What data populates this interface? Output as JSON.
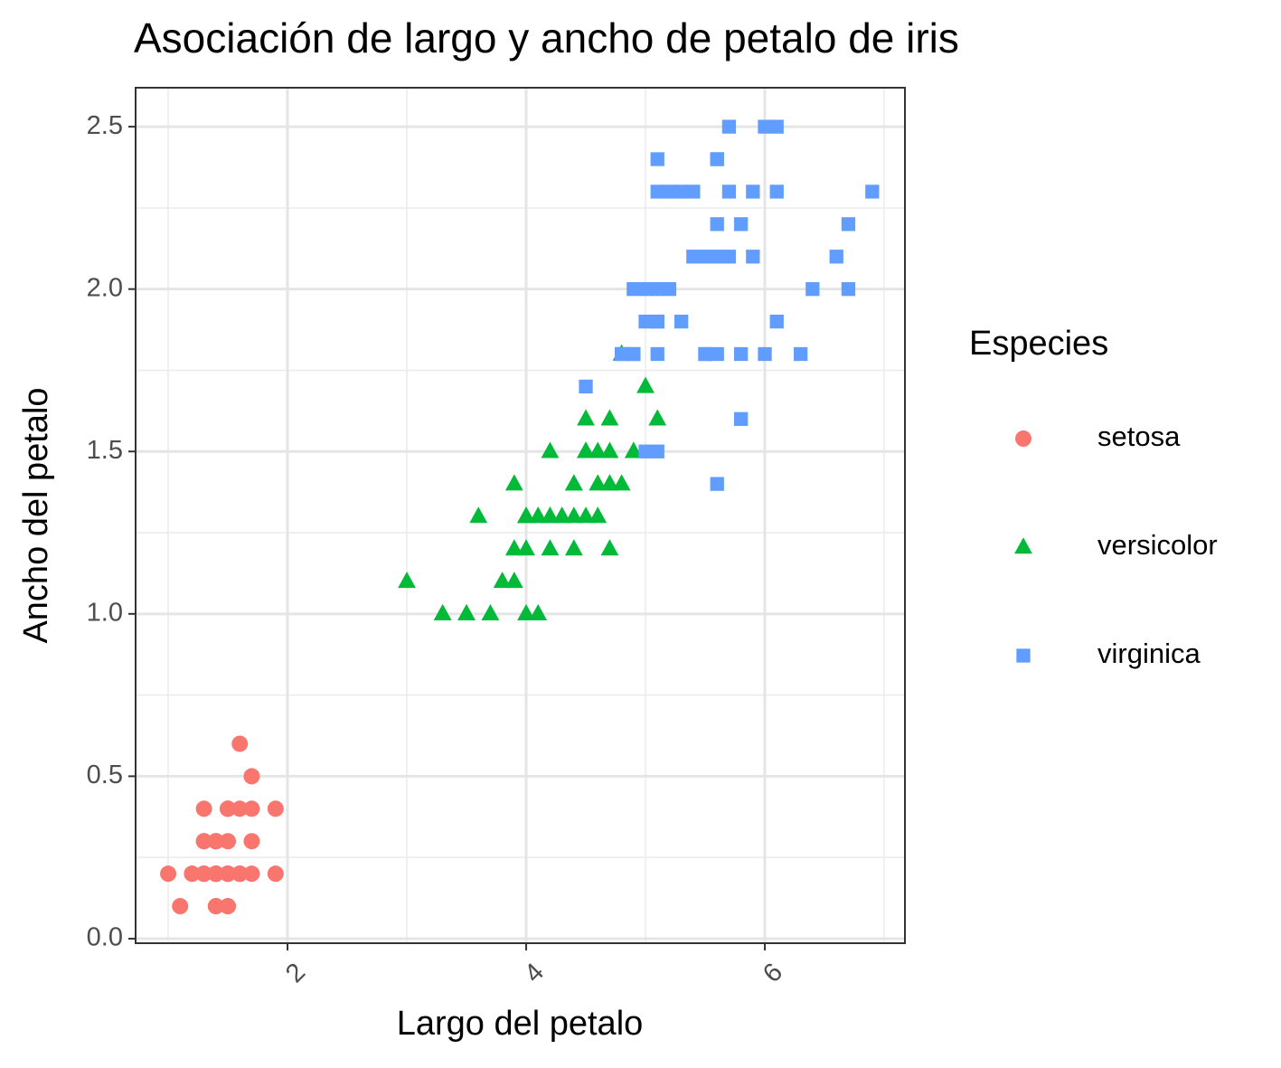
{
  "chart_data": {
    "type": "scatter",
    "title": "Asociación de largo y ancho de petalo de iris",
    "x_label": "Largo del petalo",
    "y_label": "Ancho del petalo",
    "legend_title": "Especies",
    "legend_position": "right",
    "grid": true,
    "xlim": [
      0.727,
      7.174
    ],
    "xticks": [
      2,
      4,
      6
    ],
    "ylim": [
      -0.014,
      2.62
    ],
    "yticks": [
      {
        "value": 0,
        "label": "0.0"
      },
      {
        "value": 0.5,
        "label": "0.5"
      },
      {
        "value": 1,
        "label": "1.0"
      },
      {
        "value": 1.5,
        "label": "1.5"
      },
      {
        "value": 2,
        "label": "2.0"
      },
      {
        "value": 2.5,
        "label": "2.5"
      }
    ],
    "series": [
      {
        "name": "setosa",
        "color": "#f8766d",
        "shape": "circle",
        "x": [
          1.4,
          1.4,
          1.3,
          1.5,
          1.4,
          1.7,
          1.4,
          1.5,
          1.4,
          1.5,
          1.5,
          1.6,
          1.4,
          1.1,
          1.2,
          1.5,
          1.3,
          1.4,
          1.7,
          1.5,
          1.7,
          1.5,
          1.0,
          1.7,
          1.9,
          1.6,
          1.6,
          1.5,
          1.4,
          1.6,
          1.6,
          1.5,
          1.5,
          1.4,
          1.5,
          1.2,
          1.3,
          1.4,
          1.3,
          1.5,
          1.3,
          1.3,
          1.3,
          1.6,
          1.9,
          1.4,
          1.6,
          1.4,
          1.5,
          1.4
        ],
        "values": [
          0.2,
          0.2,
          0.2,
          0.2,
          0.2,
          0.4,
          0.3,
          0.2,
          0.2,
          0.1,
          0.2,
          0.2,
          0.1,
          0.1,
          0.2,
          0.4,
          0.4,
          0.3,
          0.3,
          0.3,
          0.2,
          0.4,
          0.2,
          0.5,
          0.2,
          0.2,
          0.4,
          0.2,
          0.2,
          0.2,
          0.2,
          0.4,
          0.1,
          0.2,
          0.2,
          0.2,
          0.2,
          0.1,
          0.2,
          0.2,
          0.3,
          0.3,
          0.2,
          0.6,
          0.4,
          0.3,
          0.2,
          0.2,
          0.2,
          0.2
        ]
      },
      {
        "name": "versicolor",
        "color": "#00ba38",
        "shape": "triangle",
        "x": [
          4.7,
          4.5,
          4.9,
          4.0,
          4.6,
          4.5,
          4.7,
          3.3,
          4.6,
          3.9,
          3.5,
          4.2,
          4.0,
          4.7,
          3.6,
          4.4,
          4.5,
          4.1,
          4.5,
          3.9,
          4.8,
          4.0,
          4.9,
          4.7,
          4.3,
          4.4,
          4.8,
          5.0,
          4.5,
          3.5,
          3.8,
          3.7,
          3.9,
          5.1,
          4.5,
          4.5,
          4.7,
          4.4,
          4.1,
          4.0,
          4.4,
          4.6,
          4.0,
          3.3,
          4.2,
          4.2,
          4.2,
          4.3,
          3.0,
          4.1
        ],
        "values": [
          1.4,
          1.5,
          1.5,
          1.3,
          1.5,
          1.3,
          1.6,
          1.0,
          1.3,
          1.4,
          1.0,
          1.5,
          1.0,
          1.4,
          1.3,
          1.4,
          1.5,
          1.0,
          1.5,
          1.1,
          1.8,
          1.3,
          1.5,
          1.2,
          1.3,
          1.4,
          1.4,
          1.7,
          1.5,
          1.0,
          1.1,
          1.0,
          1.2,
          1.6,
          1.5,
          1.6,
          1.5,
          1.3,
          1.3,
          1.3,
          1.2,
          1.4,
          1.2,
          1.0,
          1.3,
          1.2,
          1.3,
          1.3,
          1.1,
          1.3
        ]
      },
      {
        "name": "virginica",
        "color": "#619cff",
        "shape": "square",
        "x": [
          6.0,
          5.1,
          5.9,
          5.6,
          5.8,
          6.6,
          4.5,
          6.3,
          5.8,
          6.1,
          5.1,
          5.3,
          5.5,
          5.0,
          5.1,
          5.3,
          5.5,
          6.7,
          6.9,
          5.0,
          5.7,
          4.9,
          6.7,
          4.9,
          5.7,
          6.0,
          4.8,
          4.9,
          5.6,
          5.8,
          6.1,
          6.4,
          5.6,
          5.1,
          5.6,
          6.1,
          5.6,
          5.5,
          4.8,
          5.4,
          5.6,
          5.1,
          5.1,
          5.9,
          5.7,
          5.2,
          5.0,
          5.2,
          5.4,
          5.1
        ],
        "values": [
          2.5,
          1.9,
          2.1,
          1.8,
          2.2,
          2.1,
          1.7,
          1.8,
          1.8,
          2.5,
          2.0,
          1.9,
          2.1,
          2.0,
          2.4,
          2.3,
          1.8,
          2.2,
          2.3,
          1.5,
          2.3,
          2.0,
          2.0,
          1.8,
          2.1,
          1.8,
          1.8,
          1.8,
          2.1,
          1.6,
          1.9,
          2.0,
          2.2,
          1.5,
          1.4,
          2.3,
          2.4,
          1.8,
          1.8,
          2.1,
          2.4,
          2.3,
          1.9,
          2.3,
          2.5,
          2.3,
          1.9,
          2.0,
          2.3,
          1.8
        ]
      }
    ]
  }
}
